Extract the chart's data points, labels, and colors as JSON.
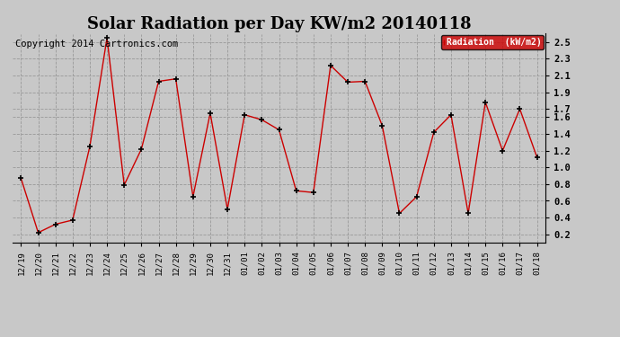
{
  "title": "Solar Radiation per Day KW/m2 20140118",
  "copyright_text": "Copyright 2014 Cartronics.com",
  "legend_label": "Radiation  (kW/m2)",
  "dates": [
    "12/19",
    "12/20",
    "12/21",
    "12/22",
    "12/23",
    "12/24",
    "12/25",
    "12/26",
    "12/27",
    "12/28",
    "12/29",
    "12/30",
    "12/31",
    "01/01",
    "01/02",
    "01/03",
    "01/04",
    "01/05",
    "01/06",
    "01/07",
    "01/08",
    "01/09",
    "01/10",
    "01/11",
    "01/12",
    "01/13",
    "01/14",
    "01/15",
    "01/16",
    "01/17",
    "01/18"
  ],
  "values": [
    0.87,
    0.22,
    0.32,
    0.37,
    1.25,
    2.55,
    0.79,
    1.22,
    2.03,
    2.06,
    0.65,
    1.65,
    0.5,
    1.63,
    1.57,
    1.45,
    0.72,
    0.7,
    2.22,
    2.02,
    2.03,
    1.5,
    0.45,
    0.65,
    1.42,
    1.63,
    0.45,
    1.78,
    1.2,
    1.7,
    1.12
  ],
  "ylim": [
    0.1,
    2.6
  ],
  "yticks": [
    0.2,
    0.4,
    0.6,
    0.8,
    1.0,
    1.2,
    1.4,
    1.6,
    1.7,
    1.9,
    2.1,
    2.3,
    2.5
  ],
  "ytick_labels": [
    "0.2",
    "0.4",
    "0.6",
    "0.8",
    "1.0",
    "1.2",
    "1.4",
    "1.6",
    "1.7",
    "1.9",
    "2.1",
    "2.3",
    "2.5"
  ],
  "line_color": "#cc0000",
  "marker_color": "black",
  "bg_color": "#c8c8c8",
  "plot_bg_color": "#c8c8c8",
  "grid_color": "#999999",
  "title_fontsize": 13,
  "copyright_fontsize": 7.5,
  "legend_bg": "#cc0000",
  "legend_text_color": "white"
}
